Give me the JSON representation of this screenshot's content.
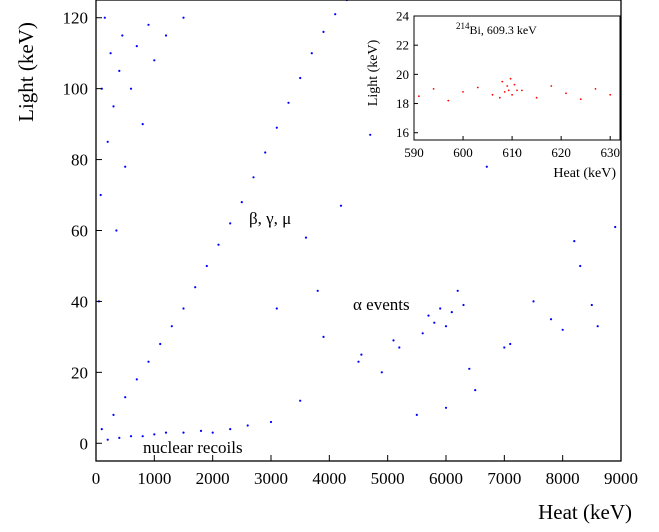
{
  "chart_data": [
    {
      "type": "scatter",
      "panel": "main",
      "xlabel": "Heat (keV)",
      "ylabel": "Light (keV)",
      "xlim": [
        0,
        9000
      ],
      "ylim": [
        -5,
        125
      ],
      "x_ticks": [
        0,
        1000,
        2000,
        3000,
        4000,
        5000,
        6000,
        7000,
        8000,
        9000
      ],
      "y_ticks": [
        0,
        20,
        40,
        60,
        80,
        100,
        120
      ],
      "grid": false,
      "point_color": "#0000ff",
      "annotations": [
        {
          "text": "β, γ, μ",
          "x": 2750,
          "y": 62
        },
        {
          "text": "α events",
          "x": 5500,
          "y": 39
        },
        {
          "text": "nuclear recoils",
          "x": 1750,
          "y": -2
        }
      ],
      "series": [
        {
          "region": "beta/gamma/muon band",
          "points": [
            [
              100,
              4
            ],
            [
              300,
              8
            ],
            [
              500,
              13
            ],
            [
              700,
              18
            ],
            [
              900,
              23
            ],
            [
              1100,
              28
            ],
            [
              1300,
              33
            ],
            [
              1500,
              38
            ],
            [
              1700,
              44
            ],
            [
              1900,
              50
            ],
            [
              2100,
              56
            ],
            [
              2300,
              62
            ],
            [
              2500,
              68
            ],
            [
              2700,
              75
            ],
            [
              2900,
              82
            ],
            [
              3100,
              89
            ],
            [
              3300,
              96
            ],
            [
              3500,
              103
            ],
            [
              3700,
              110
            ],
            [
              3900,
              116
            ],
            [
              4100,
              121
            ],
            [
              4300,
              125
            ]
          ]
        },
        {
          "region": "low-heat high-light population",
          "points": [
            [
              50,
              40
            ],
            [
              80,
              70
            ],
            [
              100,
              100
            ],
            [
              150,
              120
            ],
            [
              200,
              85
            ],
            [
              250,
              110
            ],
            [
              300,
              95
            ],
            [
              350,
              60
            ],
            [
              400,
              105
            ],
            [
              450,
              115
            ],
            [
              500,
              78
            ],
            [
              600,
              100
            ],
            [
              700,
              112
            ],
            [
              800,
              90
            ],
            [
              900,
              118
            ],
            [
              1000,
              108
            ],
            [
              1200,
              115
            ],
            [
              1500,
              120
            ]
          ]
        },
        {
          "region": "alpha events",
          "points": [
            [
              4500,
              23
            ],
            [
              4550,
              25
            ],
            [
              5100,
              29
            ],
            [
              5200,
              27
            ],
            [
              5600,
              31
            ],
            [
              5700,
              36
            ],
            [
              5800,
              34
            ],
            [
              5900,
              38
            ],
            [
              6000,
              33
            ],
            [
              6100,
              37
            ],
            [
              6200,
              43
            ],
            [
              6300,
              39
            ],
            [
              6400,
              21
            ],
            [
              6500,
              15
            ],
            [
              7000,
              27
            ],
            [
              7100,
              28
            ],
            [
              7500,
              40
            ],
            [
              7800,
              35
            ],
            [
              8000,
              32
            ],
            [
              8200,
              57
            ],
            [
              8300,
              50
            ],
            [
              8500,
              39
            ],
            [
              8600,
              33
            ],
            [
              8900,
              61
            ]
          ]
        },
        {
          "region": "nuclear recoils",
          "points": [
            [
              200,
              1
            ],
            [
              400,
              1.5
            ],
            [
              600,
              2
            ],
            [
              800,
              2
            ],
            [
              1000,
              2.5
            ],
            [
              1200,
              3
            ],
            [
              1500,
              3
            ],
            [
              1800,
              3.5
            ],
            [
              2000,
              3
            ],
            [
              2300,
              4
            ],
            [
              2600,
              5
            ],
            [
              3000,
              6
            ]
          ]
        },
        {
          "region": "sparse high-energy scatter",
          "points": [
            [
              3100,
              38
            ],
            [
              3500,
              12
            ],
            [
              3900,
              30
            ],
            [
              4200,
              67
            ],
            [
              4700,
              87
            ],
            [
              4900,
              20
            ],
            [
              3800,
              43
            ],
            [
              5500,
              8
            ],
            [
              6000,
              10
            ],
            [
              6700,
              78
            ],
            [
              7200,
              82
            ],
            [
              3600,
              58
            ]
          ]
        }
      ]
    },
    {
      "type": "scatter",
      "panel": "inset",
      "xlabel": "Heat (keV)",
      "ylabel": "Light (keV)",
      "xlim": [
        590,
        632
      ],
      "ylim": [
        15.5,
        24
      ],
      "x_ticks": [
        590,
        600,
        610,
        620,
        630
      ],
      "y_ticks": [
        16,
        18,
        20,
        22,
        24
      ],
      "grid": false,
      "point_color": "#ff0000",
      "annotation": {
        "superscript": "214",
        "text": "Bi, 609.3 keV"
      },
      "series": [
        {
          "region": "background band",
          "points": [
            [
              591,
              18.5
            ],
            [
              594,
              19.0
            ],
            [
              597,
              18.2
            ],
            [
              600,
              18.8
            ],
            [
              603,
              19.1
            ],
            [
              606,
              18.6
            ],
            [
              612,
              18.9
            ],
            [
              615,
              18.4
            ],
            [
              618,
              19.2
            ],
            [
              621,
              18.7
            ],
            [
              624,
              18.3
            ],
            [
              627,
              19.0
            ],
            [
              630,
              18.6
            ]
          ]
        },
        {
          "region": "609.3 keV line cluster",
          "points": [
            [
              607.5,
              18.4
            ],
            [
              608,
              19.5
            ],
            [
              608.5,
              18.8
            ],
            [
              609,
              19.2
            ],
            [
              609.3,
              18.9
            ],
            [
              609.7,
              19.7
            ],
            [
              610,
              18.6
            ],
            [
              610.5,
              19.3
            ],
            [
              611,
              18.9
            ]
          ]
        }
      ]
    }
  ]
}
